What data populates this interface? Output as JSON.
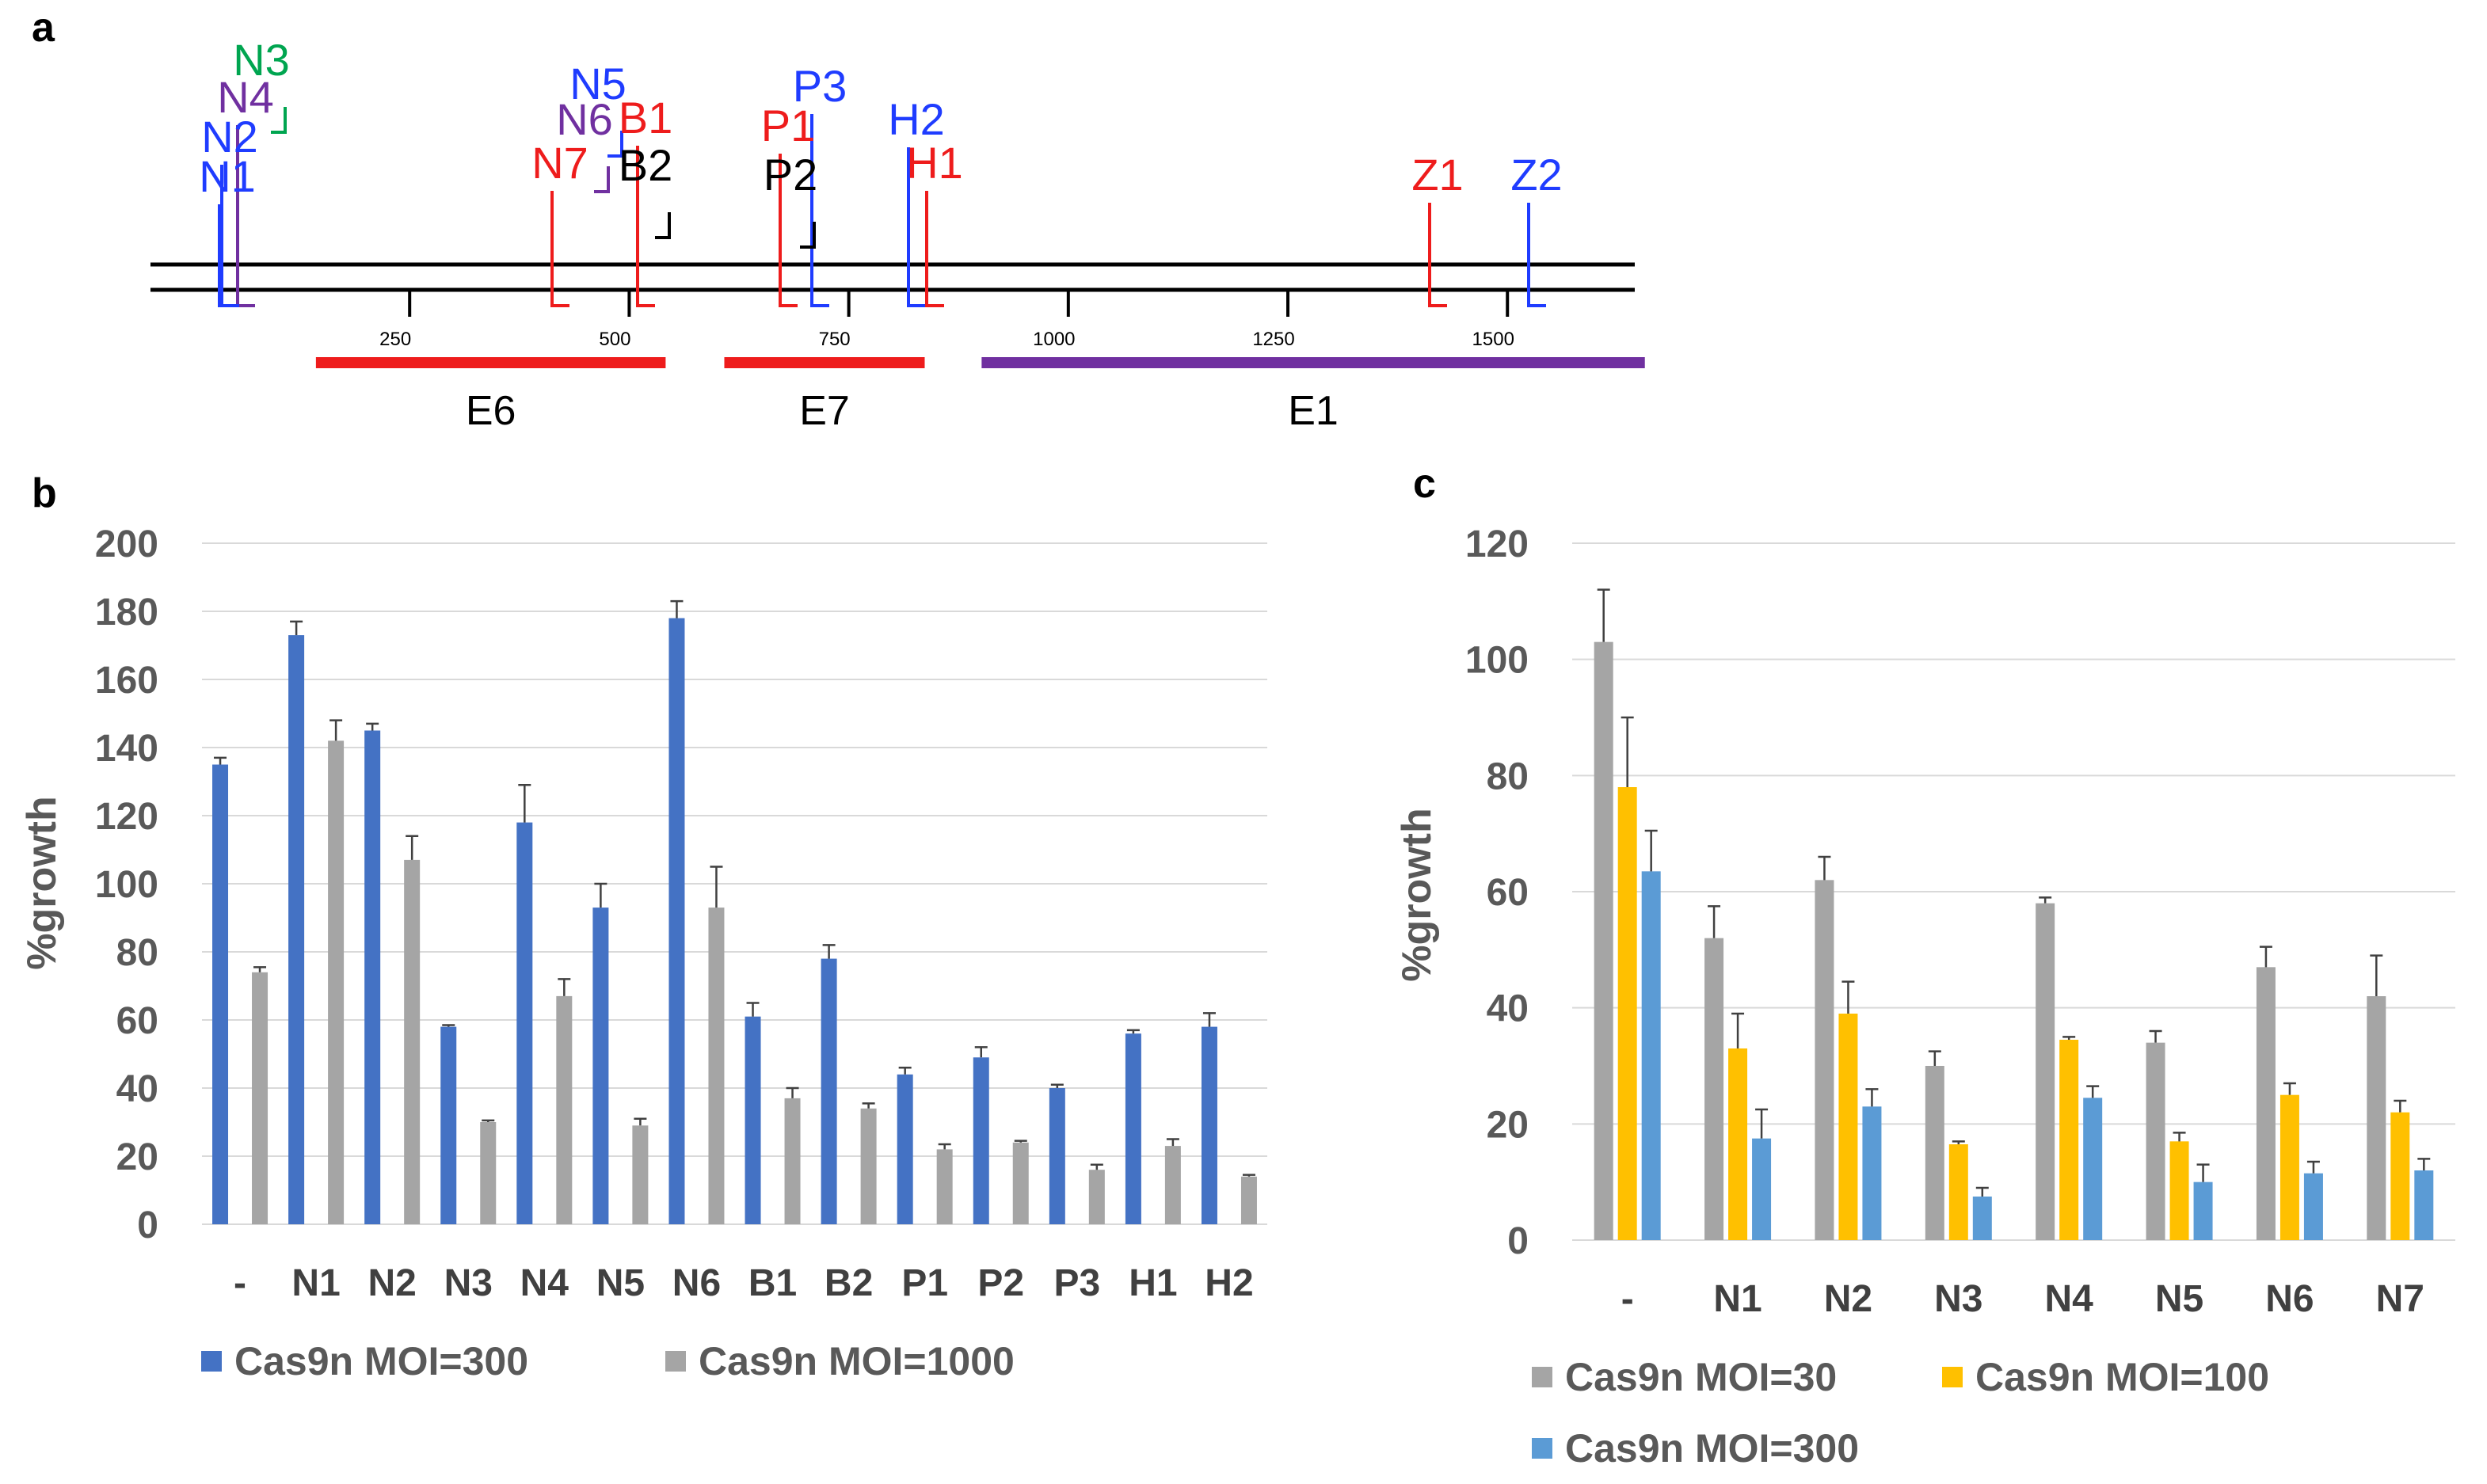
{
  "panel_labels": {
    "a": "a",
    "b": "b",
    "c": "c"
  },
  "diagram_a": {
    "scale_ticks": [
      "250",
      "500",
      "750",
      "1000",
      "1250",
      "1500"
    ],
    "scale_max": 1700,
    "regions": [
      {
        "label": "E6",
        "start": 100,
        "end": 555,
        "color": "#ee1c1c"
      },
      {
        "label": "E7",
        "start": 565,
        "end": 850,
        "color": "#ee1c1c"
      },
      {
        "label": "E1",
        "start": 858,
        "end": 1670,
        "color": "#7030a0"
      }
    ],
    "colors": {
      "blue": "#1f3cff",
      "green": "#00a550",
      "purple": "#7030a0",
      "red": "#ee1c1c",
      "black": "#000000"
    },
    "guides": [
      {
        "label": "N3",
        "color": "#00a550",
        "pos": 130,
        "strand": "top"
      },
      {
        "label": "N4",
        "color": "#7030a0",
        "pos": 110,
        "strand": "bottom"
      },
      {
        "label": "N2",
        "color": "#1f3cff",
        "pos": 105,
        "strand": "bottom"
      },
      {
        "label": "N1",
        "color": "#1f3cff",
        "pos": 100,
        "strand": "bottom"
      },
      {
        "label": "N5",
        "color": "#1f3cff",
        "pos": 475,
        "strand": "top"
      },
      {
        "label": "N6",
        "color": "#7030a0",
        "pos": 480,
        "strand": "top"
      },
      {
        "label": "B1",
        "color": "#ee1c1c",
        "pos": 520,
        "strand": "bottom"
      },
      {
        "label": "N7",
        "color": "#ee1c1c",
        "pos": 455,
        "strand": "bottom"
      },
      {
        "label": "B2",
        "color": "#000000",
        "pos": 565,
        "strand": "top"
      },
      {
        "label": "P3",
        "color": "#1f3cff",
        "pos": 710,
        "strand": "bottom"
      },
      {
        "label": "P1",
        "color": "#ee1c1c",
        "pos": 695,
        "strand": "bottom"
      },
      {
        "label": "P2",
        "color": "#000000",
        "pos": 730,
        "strand": "top"
      },
      {
        "label": "H2",
        "color": "#1f3cff",
        "pos": 870,
        "strand": "bottom"
      },
      {
        "label": "H1",
        "color": "#ee1c1c",
        "pos": 885,
        "strand": "bottom"
      },
      {
        "label": "Z1",
        "color": "#ee1c1c",
        "pos": 1455,
        "strand": "bottom"
      },
      {
        "label": "Z2",
        "color": "#1f3cff",
        "pos": 1570,
        "strand": "bottom"
      }
    ]
  },
  "chart_data": [
    {
      "type": "bar",
      "title": "",
      "xlabel": "",
      "ylabel": "%growth",
      "ylim": [
        0,
        200
      ],
      "yticks": [
        "0",
        "20",
        "40",
        "60",
        "80",
        "100",
        "120",
        "140",
        "160",
        "180",
        "200"
      ],
      "categories": [
        "-",
        "N1",
        "N2",
        "N3",
        "N4",
        "N5",
        "N6",
        "B1",
        "B2",
        "P1",
        "P2",
        "P3",
        "H1",
        "H2"
      ],
      "grid": true,
      "legend_position": "bottom",
      "series": [
        {
          "name": "Cas9n MOI=300",
          "color": "#4472c4",
          "values": [
            135,
            173,
            145,
            58,
            118,
            93,
            178,
            61,
            78,
            44,
            49,
            40,
            56,
            58
          ],
          "errors": [
            2,
            4,
            2,
            0.5,
            11,
            7,
            5,
            4,
            4,
            2,
            3,
            1,
            1,
            4
          ]
        },
        {
          "name": "Cas9n MOI=1000",
          "color": "#a5a5a5",
          "values": [
            74,
            142,
            107,
            30,
            67,
            29,
            93,
            37,
            34,
            22,
            24,
            16,
            23,
            14
          ],
          "errors": [
            1.5,
            6,
            7,
            0.5,
            5,
            2,
            12,
            3,
            1.5,
            1.5,
            0.5,
            1.5,
            2,
            0.5
          ]
        }
      ]
    },
    {
      "type": "bar",
      "title": "",
      "xlabel": "",
      "ylabel": "%growth",
      "ylim": [
        0,
        120
      ],
      "yticks": [
        "0",
        "20",
        "40",
        "60",
        "80",
        "100",
        "120"
      ],
      "categories": [
        "-",
        "N1",
        "N2",
        "N3",
        "N4",
        "N5",
        "N6",
        "N7"
      ],
      "grid": true,
      "legend_position": "bottom",
      "series": [
        {
          "name": "Cas9n MOI=30",
          "color": "#a5a5a5",
          "values": [
            103,
            52,
            62,
            30,
            58,
            34,
            47,
            42
          ],
          "errors": [
            9,
            5.5,
            4,
            2.5,
            1,
            2,
            3.5,
            7
          ]
        },
        {
          "name": "Cas9n MOI=100",
          "color": "#ffc000",
          "values": [
            78,
            33,
            39,
            16.5,
            34.5,
            17,
            25,
            22
          ],
          "errors": [
            12,
            6,
            5.5,
            0.5,
            0.5,
            1.5,
            2,
            2
          ]
        },
        {
          "name": "Cas9n MOI=300",
          "color": "#5b9bd5",
          "values": [
            63.5,
            17.5,
            23,
            7.5,
            24.5,
            10,
            11.5,
            12
          ],
          "errors": [
            7,
            5,
            3,
            1.5,
            2,
            3,
            2,
            2
          ]
        }
      ]
    }
  ]
}
